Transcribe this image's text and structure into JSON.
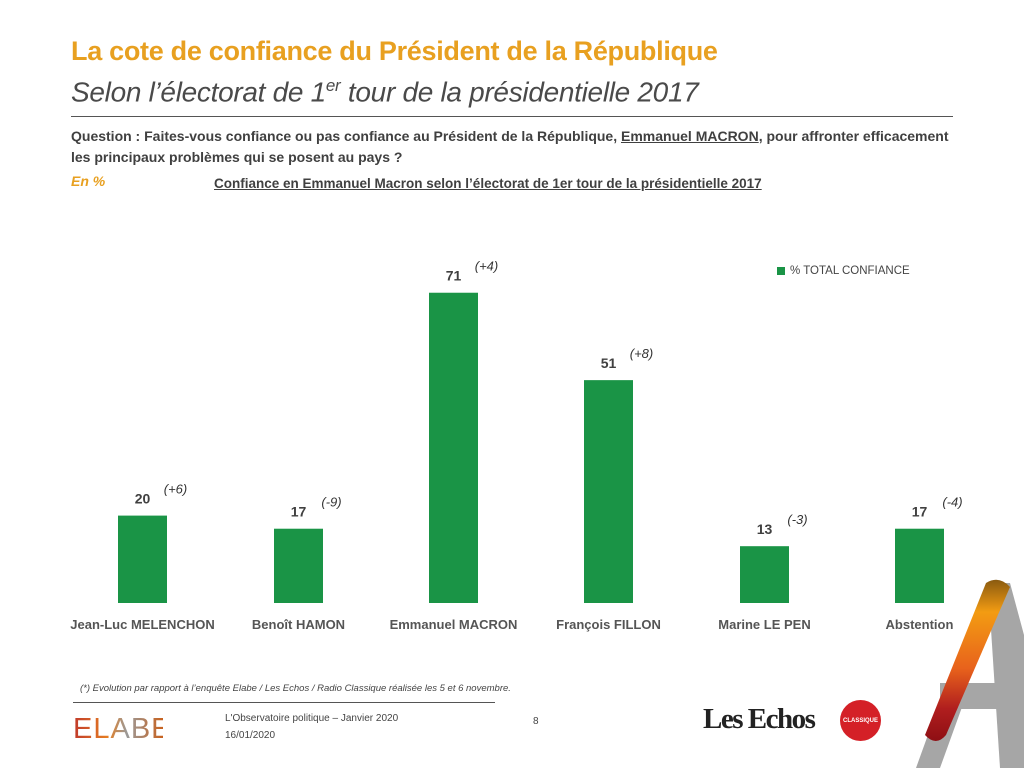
{
  "header": {
    "title": "La cote de confiance du Président de la République",
    "subtitle_pre": "Selon l’électorat de 1",
    "subtitle_sup": "er",
    "subtitle_post": " tour de la présidentielle 2017"
  },
  "question": {
    "prefix": "Question : Faites-vous confiance ou pas confiance au Président de la République, ",
    "name": "Emmanuel MACRON",
    "suffix": ", pour affronter efficacement les principaux problèmes qui se posent au pays ?"
  },
  "unit_label": "En %",
  "chart_data": {
    "type": "bar",
    "title": "Confiance en Emmanuel Macron selon l’électorat de 1er tour de la présidentielle 2017",
    "categories": [
      "Jean-Luc MELENCHON",
      "Benoît HAMON",
      "Emmanuel MACRON",
      "François FILLON",
      "Marine LE PEN",
      "Abstention"
    ],
    "series": [
      {
        "name": "% TOTAL CONFIANCE",
        "values": [
          20,
          17,
          71,
          51,
          13,
          17
        ],
        "color": "#1a9446"
      }
    ],
    "evolutions": [
      "(+6)",
      "(-9)",
      "(+4)",
      "(+8)",
      "(-3)",
      "(-4)"
    ],
    "xlabel": "",
    "ylabel": "",
    "ylim": [
      0,
      80
    ],
    "grid": false,
    "legend_position": "top-right"
  },
  "footer": {
    "footnote": "(*) Evolution par rapport à l’enquête Elabe / Les Echos / Radio Classique réalisée les 5 et 6 novembre.",
    "line1": "L'Observatoire politique – Janvier 2020",
    "line2": "16/01/2020",
    "page_number": "8",
    "elabe_logo": "ELABE",
    "lesechos_logo": "Les Echos",
    "radio_logo": "CLASSIQUE"
  },
  "colors": {
    "accent": "#e8a020",
    "bar": "#1a9446",
    "text": "#404040"
  }
}
